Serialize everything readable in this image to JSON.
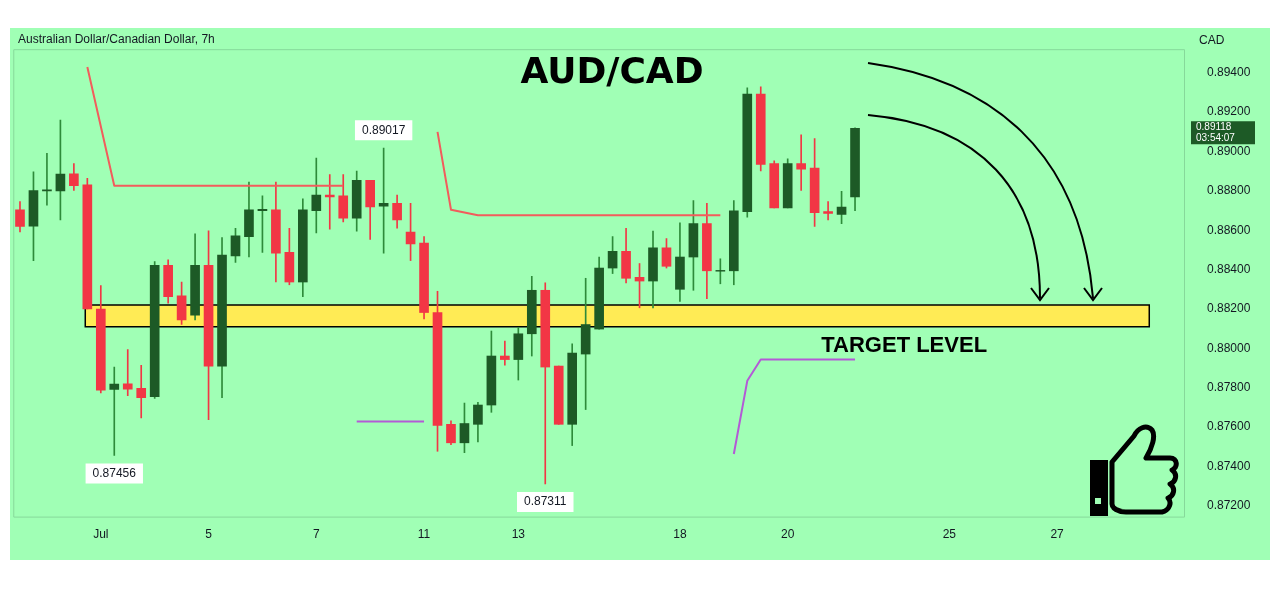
{
  "chart_data": {
    "type": "candlestick",
    "title": "AUD/CAD",
    "subtitle": "Australian Dollar/Canadian Dollar, 7h",
    "ylabel": "CAD",
    "categories": [
      null,
      null,
      null,
      null,
      null,
      null,
      "Jul",
      null,
      null,
      null,
      null,
      null,
      null,
      null,
      "5",
      null,
      null,
      null,
      null,
      null,
      null,
      null,
      "7",
      null,
      null,
      null,
      null,
      null,
      null,
      null,
      "11",
      null,
      null,
      null,
      null,
      null,
      null,
      "13",
      null,
      null,
      null,
      null,
      null,
      null,
      null,
      null,
      null,
      null,
      null,
      "18",
      null,
      null,
      null,
      null,
      null,
      null,
      null,
      "20",
      null,
      null,
      null,
      null,
      null,
      null,
      null,
      null,
      null,
      null,
      null,
      "25",
      null,
      null,
      null,
      null,
      null,
      null,
      null,
      "27",
      null,
      null,
      null,
      null,
      null,
      null,
      null,
      null,
      null
    ],
    "ohlc": [
      [
        0.88704,
        0.88746,
        0.88591,
        0.88619
      ],
      [
        0.88621,
        0.88897,
        0.88446,
        0.88801
      ],
      [
        0.888,
        0.88991,
        0.88728,
        0.88805
      ],
      [
        0.888,
        0.8916,
        0.88652,
        0.88886
      ],
      [
        0.88887,
        0.88939,
        0.88803,
        0.88826
      ],
      [
        0.88831,
        0.88864,
        0.882,
        0.882
      ],
      [
        0.882,
        0.88319,
        0.87773,
        0.87788
      ],
      [
        0.87791,
        0.87905,
        0.87456,
        0.87819
      ],
      [
        0.8782,
        0.87994,
        0.87759,
        0.87792
      ],
      [
        0.87797,
        0.87914,
        0.87647,
        0.8775
      ],
      [
        0.87755,
        0.88441,
        0.87745,
        0.88422
      ],
      [
        0.88422,
        0.8845,
        0.88229,
        0.88262
      ],
      [
        0.88267,
        0.88337,
        0.88121,
        0.88145
      ],
      [
        0.88168,
        0.88582,
        0.88145,
        0.88422
      ],
      [
        0.88422,
        0.88597,
        0.87637,
        0.8791
      ],
      [
        0.8791,
        0.88563,
        0.8775,
        0.88474
      ],
      [
        0.88469,
        0.8861,
        0.88436,
        0.88572
      ],
      [
        0.88568,
        0.88845,
        0.88464,
        0.88704
      ],
      [
        0.887,
        0.88775,
        0.88488,
        0.88706
      ],
      [
        0.88704,
        0.88845,
        0.88337,
        0.88483
      ],
      [
        0.88488,
        0.8861,
        0.88323,
        0.88337
      ],
      [
        0.88337,
        0.8876,
        0.88262,
        0.88704
      ],
      [
        0.88699,
        0.88967,
        0.88587,
        0.88779
      ],
      [
        0.88779,
        0.88883,
        0.88605,
        0.8877
      ],
      [
        0.88775,
        0.88883,
        0.88643,
        0.88662
      ],
      [
        0.88662,
        0.88901,
        0.88596,
        0.88854
      ],
      [
        0.88854,
        0.88854,
        0.88554,
        0.88718
      ],
      [
        0.88723,
        0.89017,
        0.88483,
        0.88737
      ],
      [
        0.88737,
        0.88779,
        0.8861,
        0.88652
      ],
      [
        0.88591,
        0.88737,
        0.88446,
        0.8853
      ],
      [
        0.88535,
        0.88568,
        0.8815,
        0.88182
      ],
      [
        0.88182,
        0.8829,
        0.87477,
        0.87609
      ],
      [
        0.87614,
        0.87632,
        0.8751,
        0.8752
      ],
      [
        0.8752,
        0.87722,
        0.8747,
        0.87618
      ],
      [
        0.87614,
        0.87726,
        0.87524,
        0.87712
      ],
      [
        0.87712,
        0.88088,
        0.87675,
        0.87961
      ],
      [
        0.87961,
        0.88037,
        0.87914,
        0.87943
      ],
      [
        0.87943,
        0.88107,
        0.87839,
        0.88074
      ],
      [
        0.88074,
        0.88366,
        0.87961,
        0.88295
      ],
      [
        0.88295,
        0.88333,
        0.87311,
        0.87905
      ],
      [
        0.8791,
        0.8791,
        0.87614,
        0.87614
      ],
      [
        0.87614,
        0.88023,
        0.87506,
        0.87976
      ],
      [
        0.87971,
        0.88356,
        0.87689,
        0.88121
      ],
      [
        0.88098,
        0.88464,
        0.88098,
        0.88408
      ],
      [
        0.88408,
        0.88568,
        0.8838,
        0.88493
      ],
      [
        0.88493,
        0.8861,
        0.88333,
        0.88356
      ],
      [
        0.88361,
        0.88431,
        0.88206,
        0.88342
      ],
      [
        0.88342,
        0.88596,
        0.88206,
        0.88511
      ],
      [
        0.88511,
        0.88558,
        0.88408,
        0.88417
      ],
      [
        0.883,
        0.88638,
        0.88239,
        0.88464
      ],
      [
        0.88464,
        0.88751,
        0.88295,
        0.88634
      ],
      [
        0.88634,
        0.88737,
        0.88253,
        0.88394
      ],
      [
        0.88392,
        0.88455,
        0.88328,
        0.88396
      ],
      [
        0.88394,
        0.88751,
        0.88323,
        0.88699
      ],
      [
        0.88695,
        0.89324,
        0.88666,
        0.89292
      ],
      [
        0.89292,
        0.89329,
        0.88901,
        0.88934
      ],
      [
        0.88939,
        0.88953,
        0.88713,
        0.88713
      ],
      [
        0.88713,
        0.88963,
        0.88713,
        0.88939
      ],
      [
        0.88939,
        0.89085,
        0.88803,
        0.88911
      ],
      [
        0.88916,
        0.89066,
        0.88619,
        0.8869
      ],
      [
        0.88695,
        0.88746,
        0.88652,
        0.88685
      ],
      [
        0.8868,
        0.88798,
        0.88634,
        0.88718
      ],
      [
        0.8877,
        0.8912,
        0.88699,
        0.89118
      ],
      null,
      null,
      null,
      null,
      null,
      null,
      null,
      null,
      null,
      null,
      null,
      null,
      null,
      null,
      null,
      null,
      null,
      null,
      null,
      null,
      null,
      null,
      null,
      null
    ],
    "series": [
      {
        "type": "line",
        "color": "#f25c5c",
        "values": [
          null,
          null,
          null,
          null,
          null,
          0.8943,
          null,
          0.88826,
          0.88826,
          0.88826,
          0.88826,
          0.88826,
          0.88826,
          0.88826,
          0.88826,
          0.88826,
          0.88826,
          0.88826,
          0.88826,
          0.88826,
          0.88826,
          0.88826,
          0.88826,
          0.88826,
          0.88826,
          null,
          null,
          null,
          null,
          null,
          null,
          null,
          null,
          null,
          null,
          null,
          null,
          null,
          null,
          null,
          null,
          null,
          null,
          null,
          null,
          null,
          null,
          null,
          null,
          null,
          null,
          null,
          null,
          null,
          null,
          null,
          null,
          null,
          null,
          null,
          null,
          null,
          null,
          null,
          null,
          null,
          null,
          null,
          null,
          null,
          null,
          null,
          null,
          null,
          null,
          null,
          null,
          null,
          null,
          null,
          null,
          null,
          null,
          null,
          null,
          null,
          null
        ]
      },
      {
        "type": "line",
        "color": "#f25c5c",
        "values": [
          null,
          null,
          null,
          null,
          null,
          null,
          null,
          null,
          null,
          null,
          null,
          null,
          null,
          null,
          null,
          null,
          null,
          null,
          null,
          null,
          null,
          null,
          null,
          null,
          null,
          null,
          null,
          null,
          null,
          null,
          null,
          0.891,
          0.88704,
          null,
          0.88676,
          0.88676,
          0.88676,
          0.88676,
          0.88676,
          0.88676,
          0.88676,
          0.88676,
          0.88676,
          0.88676,
          0.88676,
          0.88676,
          0.88676,
          0.88676,
          0.88676,
          0.88676,
          0.88676,
          0.88676,
          0.88676,
          null,
          null,
          null,
          null,
          null,
          null,
          null,
          null,
          null,
          null,
          null,
          null,
          null,
          null,
          null,
          null,
          null,
          null,
          null,
          null,
          null,
          null,
          null,
          null,
          null,
          null,
          null,
          null,
          null,
          null,
          null,
          null,
          null,
          null
        ]
      },
      {
        "type": "line",
        "color": "#b35ad6",
        "values": [
          null,
          null,
          null,
          null,
          null,
          null,
          null,
          null,
          null,
          null,
          null,
          null,
          null,
          null,
          null,
          null,
          null,
          null,
          null,
          null,
          null,
          null,
          null,
          null,
          null,
          0.87628,
          0.87628,
          0.87628,
          0.87628,
          0.87628,
          0.87628,
          null,
          null,
          null,
          null,
          null,
          null,
          null,
          null,
          null,
          null,
          null,
          null,
          null,
          null,
          null,
          null,
          null,
          null,
          null,
          null,
          null,
          null,
          null,
          null,
          null,
          null,
          null,
          null,
          null,
          null,
          null,
          null,
          null,
          null,
          null,
          null,
          null,
          null,
          null,
          null,
          null,
          null,
          null,
          null,
          null,
          null,
          null,
          null,
          null,
          null,
          null,
          null,
          null,
          null,
          null,
          null
        ]
      },
      {
        "type": "line",
        "color": "#b35ad6",
        "values": [
          null,
          null,
          null,
          null,
          null,
          null,
          null,
          null,
          null,
          null,
          null,
          null,
          null,
          null,
          null,
          null,
          null,
          null,
          null,
          null,
          null,
          null,
          null,
          null,
          null,
          null,
          null,
          null,
          null,
          null,
          null,
          null,
          null,
          null,
          null,
          null,
          null,
          null,
          null,
          null,
          null,
          null,
          null,
          null,
          null,
          null,
          null,
          null,
          null,
          null,
          null,
          null,
          null,
          0.87463,
          0.87835,
          0.87943,
          0.87943,
          0.87943,
          0.87943,
          0.87943,
          0.87943,
          0.87943,
          0.87943,
          null,
          null,
          null,
          null,
          null,
          null,
          null,
          null,
          null,
          null,
          null,
          null,
          null,
          null,
          null,
          null,
          null,
          null,
          null,
          null,
          null,
          null,
          null,
          null
        ]
      }
    ],
    "ylim": [
      0.8714,
      0.8952
    ],
    "yticks": [
      {
        "value": 0.872,
        "label": "0.87200"
      },
      {
        "value": 0.874,
        "label": "0.87400"
      },
      {
        "value": 0.876,
        "label": "0.87600"
      },
      {
        "value": 0.878,
        "label": "0.87800"
      },
      {
        "value": 0.88,
        "label": "0.88000"
      },
      {
        "value": 0.882,
        "label": "0.88200"
      },
      {
        "value": 0.884,
        "label": "0.88400"
      },
      {
        "value": 0.886,
        "label": "0.88600"
      },
      {
        "value": 0.888,
        "label": "0.88800"
      },
      {
        "value": 0.89,
        "label": "0.89000"
      },
      {
        "value": 0.892,
        "label": "0.89200"
      },
      {
        "value": 0.894,
        "label": "0.89400"
      }
    ],
    "bands": [
      {
        "axis": "y",
        "from": 0.8811,
        "to": 0.8822,
        "label": "TARGET LEVEL",
        "color": "#ffeb55"
      }
    ],
    "annotations": [
      {
        "text": "0.89017",
        "y": 0.89017
      },
      {
        "text": "0.87456",
        "y": 0.87456
      },
      {
        "text": "0.87311",
        "y": 0.87311
      },
      "0.89118",
      "03:54:07"
    ],
    "grid": false,
    "legend": false
  }
}
